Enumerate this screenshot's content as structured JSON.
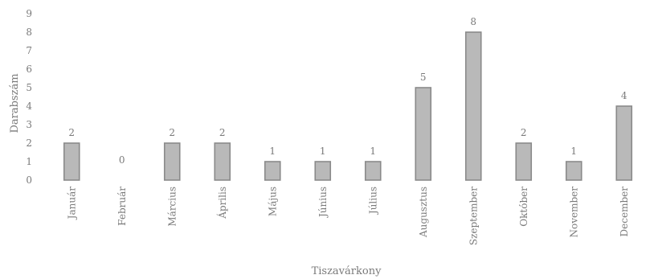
{
  "chart_data": {
    "type": "bar",
    "categories": [
      "Január",
      "Február",
      "Március",
      "Április",
      "Május",
      "Június",
      "Július",
      "Augusztus",
      "Szeptember",
      "Október",
      "November",
      "December"
    ],
    "values": [
      2,
      0,
      2,
      2,
      1,
      1,
      1,
      5,
      8,
      2,
      1,
      4
    ],
    "xlabel": "Tiszavárkony",
    "ylabel": "Darabszám",
    "ylim": [
      0,
      9
    ],
    "yticks": [
      0,
      1,
      2,
      3,
      4,
      5,
      6,
      7,
      8,
      9
    ],
    "grid": false,
    "legend": "none",
    "colors": {
      "bar_fill": "#b9b9b9",
      "bar_stroke": "#8a8a8a",
      "text": "#7a7a7a"
    }
  }
}
